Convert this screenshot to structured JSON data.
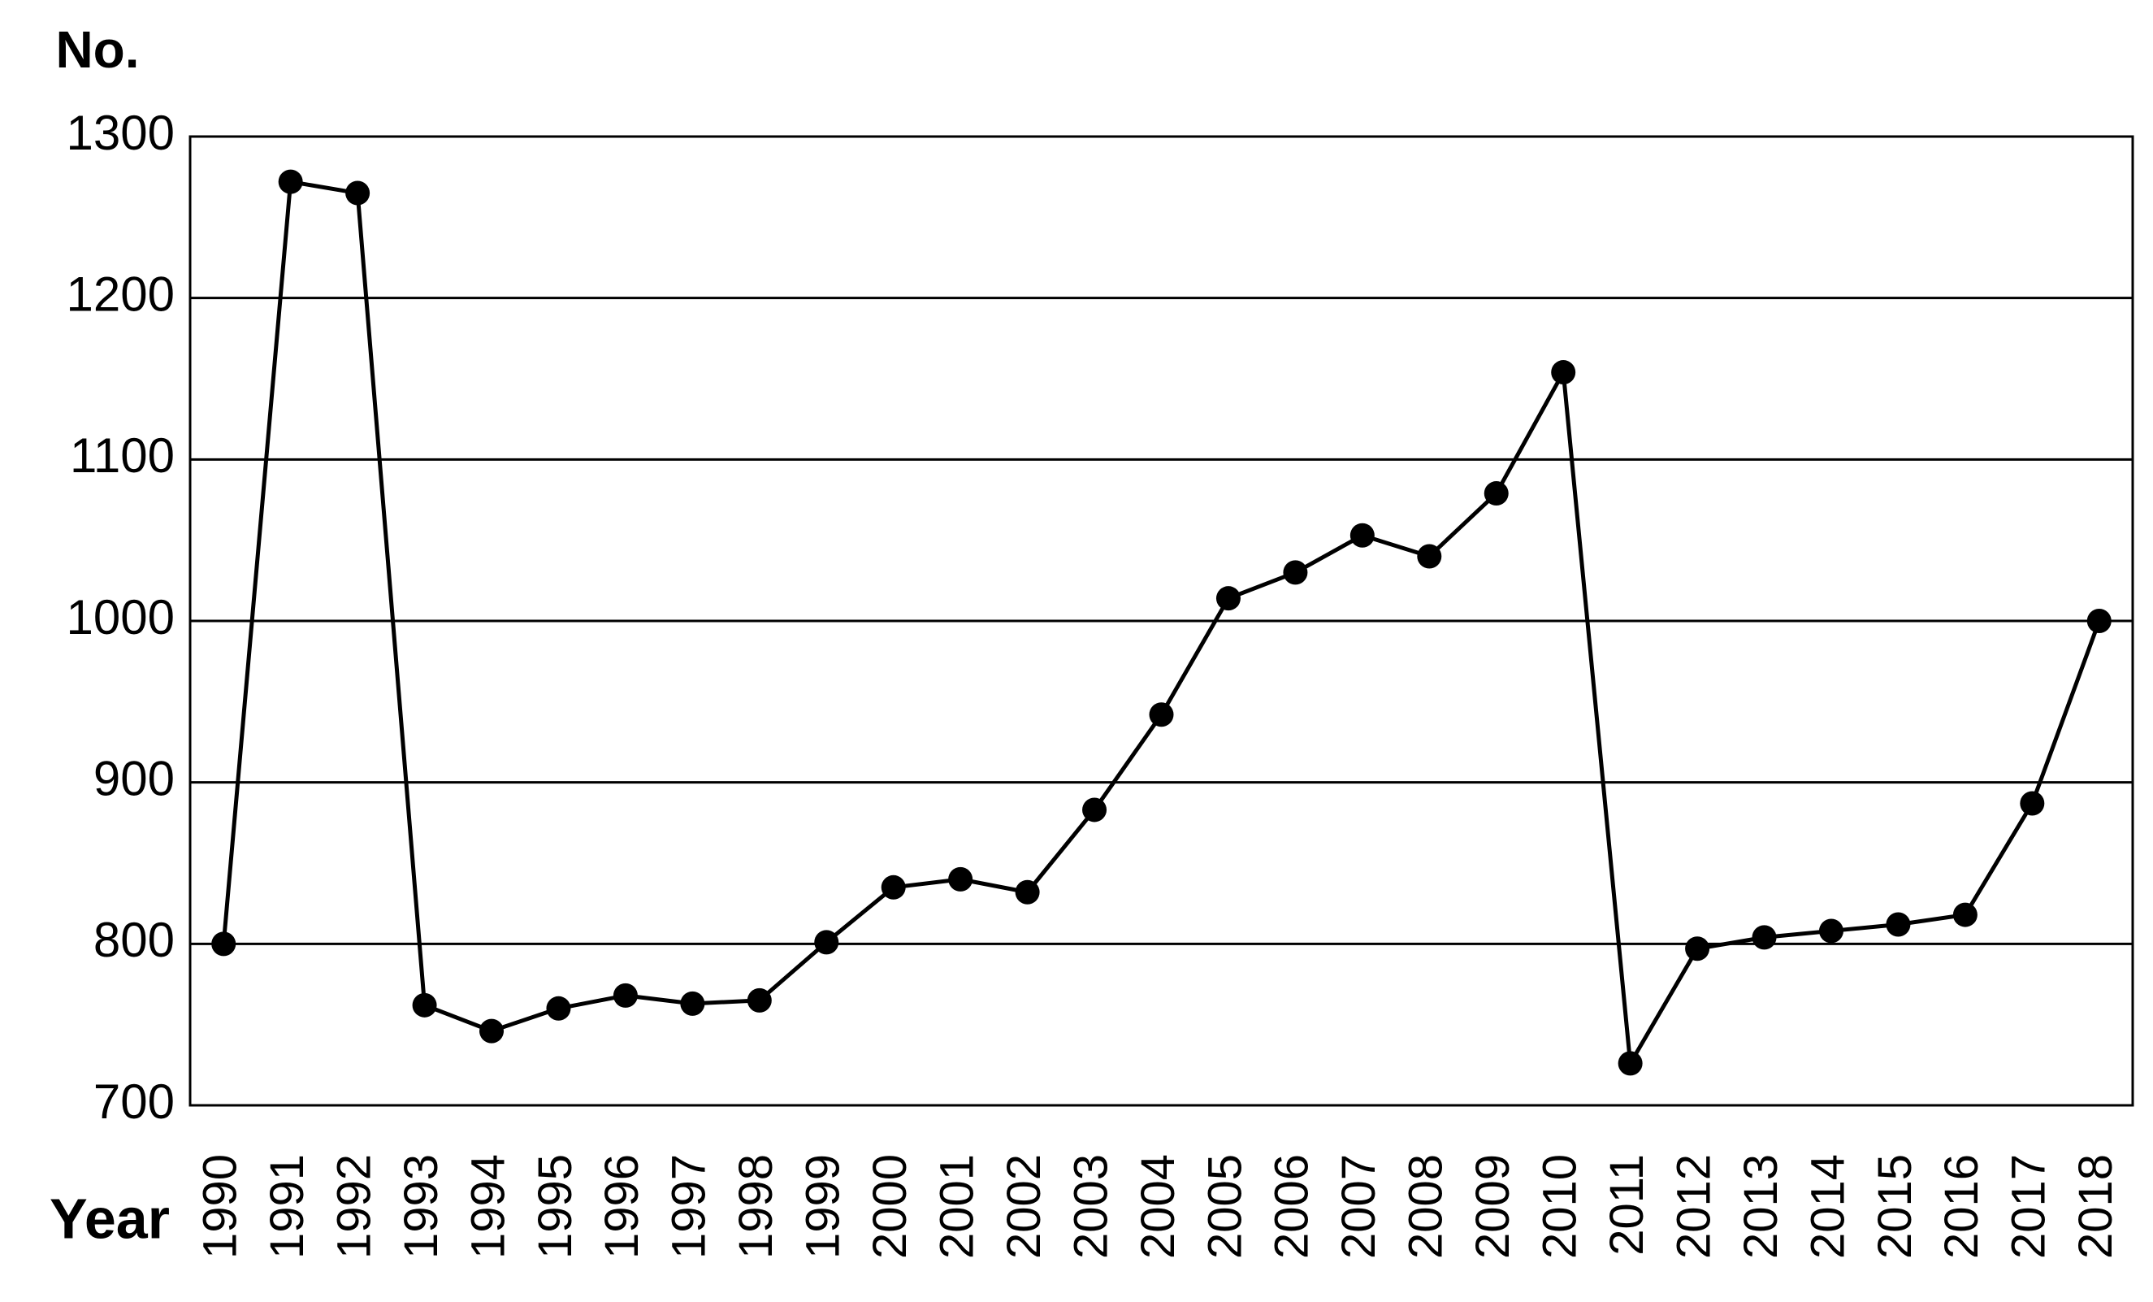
{
  "chart_data": {
    "type": "line",
    "x_label": "Year",
    "y_label": "No.",
    "categories": [
      "1990",
      "1991",
      "1992",
      "1993",
      "1994",
      "1995",
      "1996",
      "1997",
      "1998",
      "1999",
      "2000",
      "2001",
      "2002",
      "2003",
      "2004",
      "2005",
      "2006",
      "2007",
      "2008",
      "2009",
      "2010",
      "2011",
      "2012",
      "2013",
      "2014",
      "2015",
      "2016",
      "2017",
      "2018"
    ],
    "values": [
      800,
      1272,
      1265,
      762,
      746,
      760,
      768,
      763,
      765,
      801,
      835,
      840,
      832,
      883,
      942,
      1014,
      1030,
      1053,
      1040,
      1079,
      1154,
      726,
      797,
      804,
      808,
      812,
      818,
      887,
      1000
    ],
    "color": "#000000",
    "ylim": [
      700,
      1300
    ],
    "yticks": [
      700,
      800,
      900,
      1000,
      1100,
      1200,
      1300
    ],
    "grid": true
  }
}
